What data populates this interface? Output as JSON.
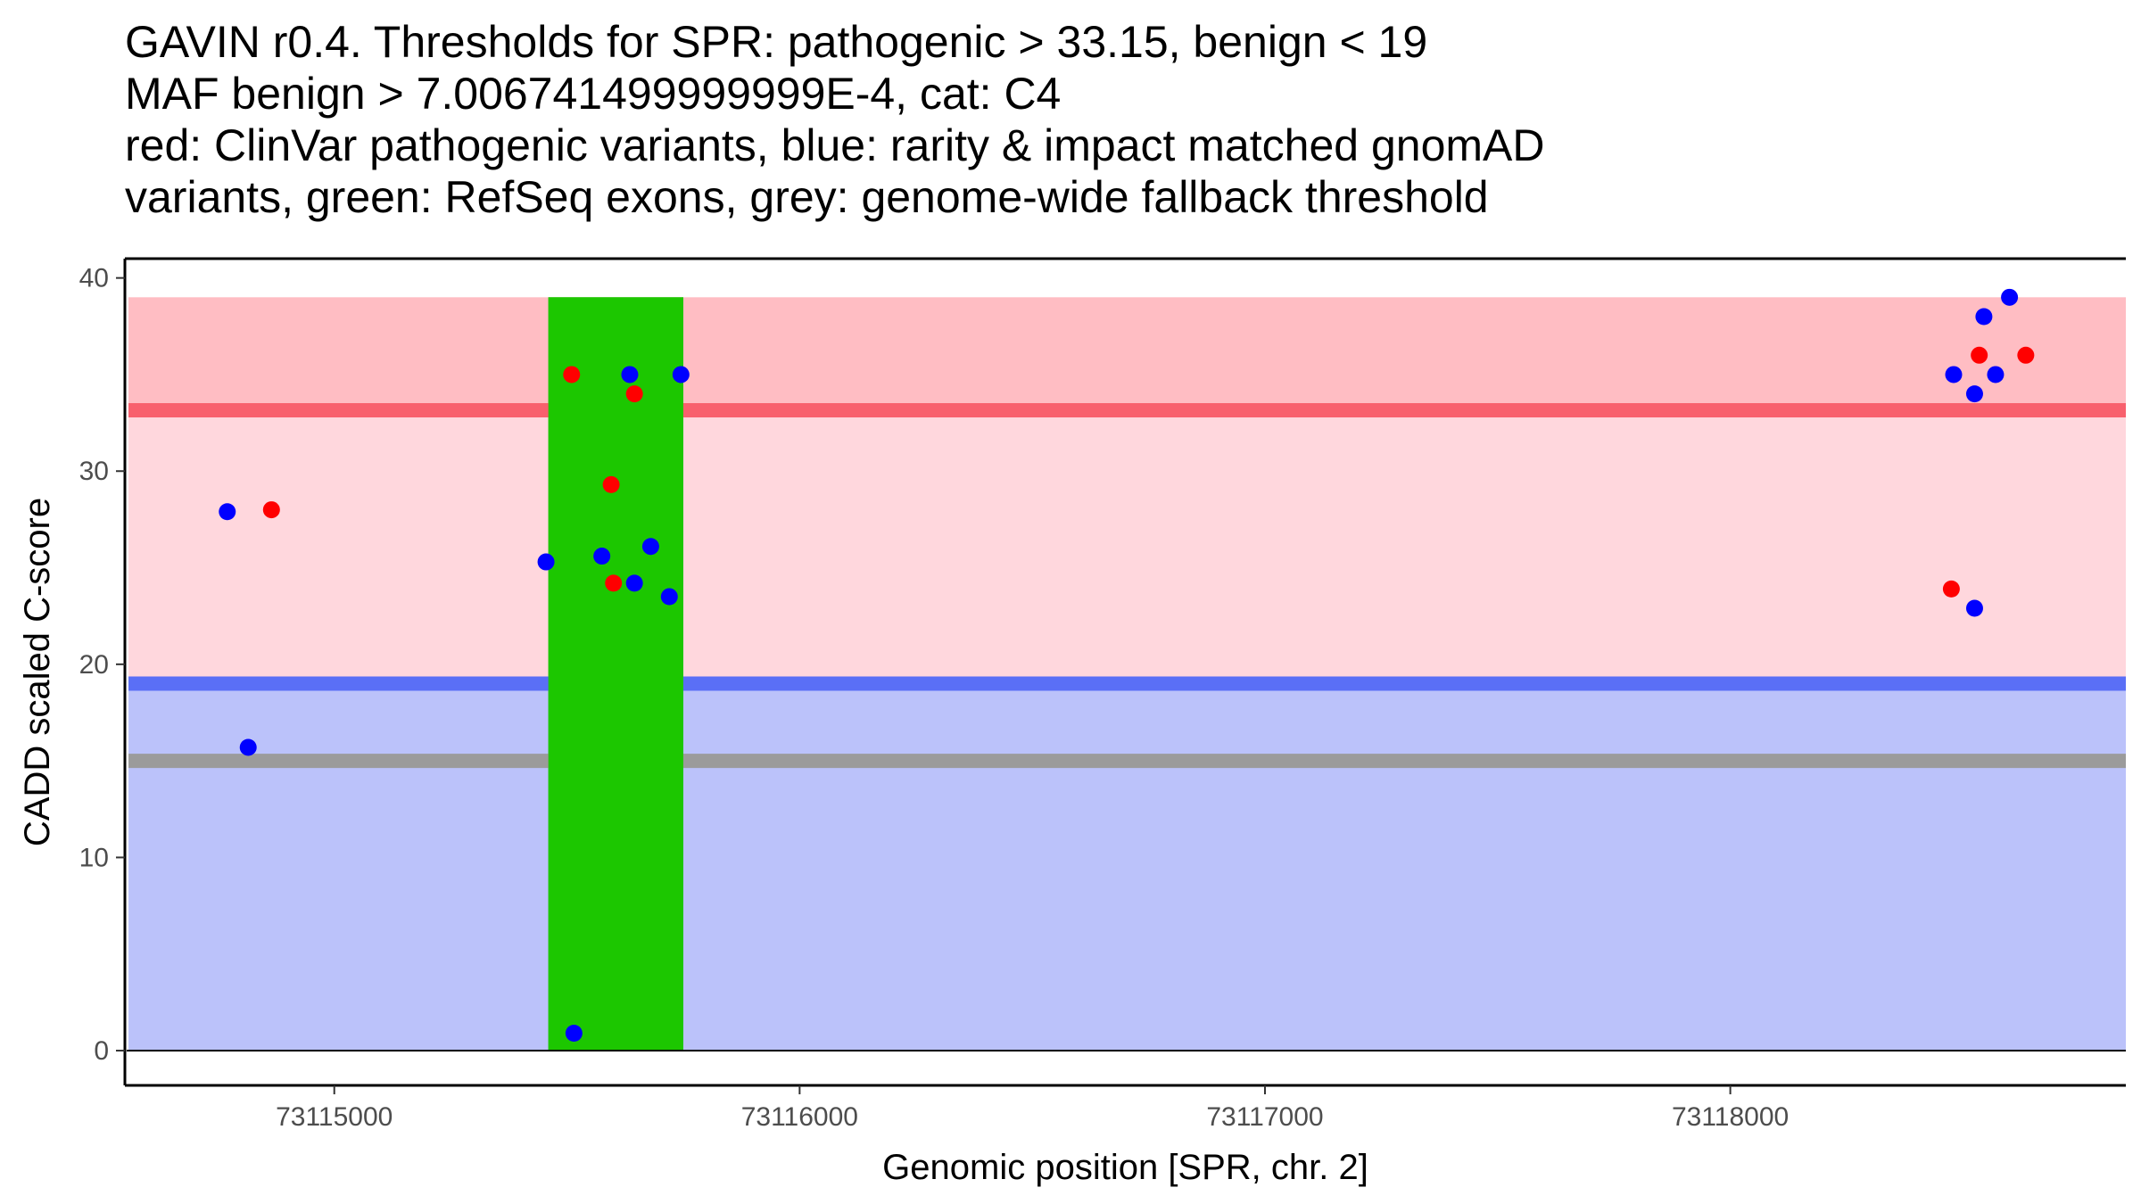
{
  "title_lines": [
    "GAVIN r0.4. Thresholds for SPR: pathogenic > 33.15, benign < 19",
    "MAF benign > 7.006741499999999E-4, cat: C4",
    "red: ClinVar pathogenic variants, blue: rarity & impact matched gnomAD",
    "variants, green: RefSeq exons, grey: genome-wide fallback threshold"
  ],
  "chart_data": {
    "type": "scatter",
    "xlabel": "Genomic position [SPR, chr. 2]",
    "ylabel": "CADD scaled C-score",
    "xlim": [
      73114550,
      73118850
    ],
    "ylim": [
      -1.8,
      41
    ],
    "x_ticks": [
      73115000,
      73116000,
      73117000,
      73118000
    ],
    "y_ticks": [
      0,
      10,
      20,
      30,
      40
    ],
    "grid": false,
    "colors": {
      "pathogenic_zone": "#ffd7dd",
      "pathogenic_band_high": "#ffbdc3",
      "benign_zone": "#bbc2fa",
      "pathogenic_threshold_line": "#f8606d",
      "benign_threshold_line": "#5a6ff6",
      "fallback_threshold_line": "#9b9b9b",
      "exon": "#1cc700",
      "clinvar_point": "#ff0000",
      "gnomad_point": "#0000ff"
    },
    "regions": {
      "pathogenic_upper": [
        33.15,
        39
      ],
      "pathogenic_lower": [
        19,
        33.15
      ],
      "benign": [
        0,
        19
      ]
    },
    "thresholds": {
      "pathogenic": 33.15,
      "benign": 19,
      "fallback": 15
    },
    "exons": [
      {
        "start": 73115460,
        "end": 73115750,
        "ymin": 0,
        "ymax": 39
      }
    ],
    "series": [
      {
        "name": "ClinVar pathogenic variants",
        "color": "#ff0000",
        "points": [
          [
            73114865,
            28.0
          ],
          [
            73115510,
            35.0
          ],
          [
            73115595,
            29.3
          ],
          [
            73115600,
            24.2
          ],
          [
            73115645,
            34.0
          ],
          [
            73118475,
            23.9
          ],
          [
            73118535,
            36.0
          ],
          [
            73118635,
            36.0
          ]
        ]
      },
      {
        "name": "rarity & impact matched gnomAD variants",
        "color": "#0000ff",
        "points": [
          [
            73114770,
            27.9
          ],
          [
            73114815,
            15.7
          ],
          [
            73115455,
            25.3
          ],
          [
            73115515,
            0.9
          ],
          [
            73115575,
            25.6
          ],
          [
            73115635,
            35.0
          ],
          [
            73115645,
            24.2
          ],
          [
            73115680,
            26.1
          ],
          [
            73115720,
            23.5
          ],
          [
            73115745,
            35.0
          ],
          [
            73118480,
            35.0
          ],
          [
            73118525,
            34.0
          ],
          [
            73118545,
            38.0
          ],
          [
            73118570,
            35.0
          ],
          [
            73118600,
            39.0
          ],
          [
            73118525,
            22.9
          ]
        ]
      }
    ]
  }
}
